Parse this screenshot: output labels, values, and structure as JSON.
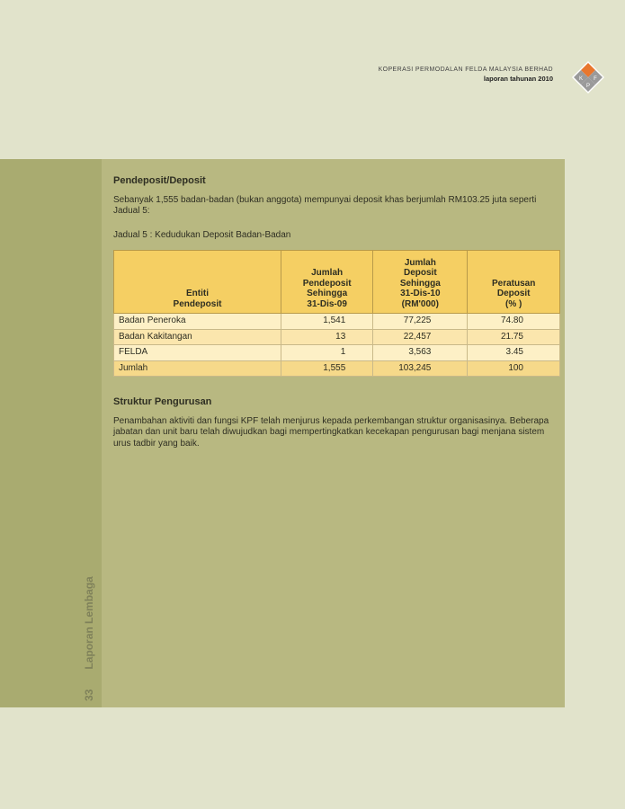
{
  "header": {
    "org": "KOPERASI PERMODALAN FELDA MALAYSIA BERHAD",
    "report": "laporan tahunan 2010",
    "logo_letters": [
      "K",
      "P",
      "F"
    ]
  },
  "sidebar": {
    "page_number": "33",
    "section": "Laporan Lembaga"
  },
  "section1": {
    "title": "Pendeposit/Deposit",
    "para": "Sebanyak 1,555 badan-badan (bukan anggota) mempunyai deposit khas berjumlah RM103.25 juta seperti Jadual 5:",
    "caption": "Jadual 5 : Kedudukan Deposit Badan-Badan"
  },
  "table": {
    "headers": [
      [
        "Entiti",
        "Pendeposit"
      ],
      [
        "Jumlah",
        "Pendeposit",
        "Sehingga",
        "31-Dis-09"
      ],
      [
        "Jumlah",
        "Deposit",
        "Sehingga",
        "31-Dis-10",
        "(RM'000)"
      ],
      [
        "Peratusan",
        "Deposit",
        "(% )"
      ]
    ],
    "rows": [
      [
        "Badan Peneroka",
        "1,541",
        "77,225",
        "74.80"
      ],
      [
        "Badan Kakitangan",
        "13",
        "22,457",
        "21.75"
      ],
      [
        "FELDA",
        "1",
        "3,563",
        "3.45"
      ],
      [
        "Jumlah",
        "1,555",
        "103,245",
        "100"
      ]
    ]
  },
  "section2": {
    "title": "Struktur Pengurusan",
    "para": "Penambahan aktiviti dan fungsi KPF telah menjurus kepada perkembangan struktur organisasinya. Beberapa jabatan dan unit baru telah diwujudkan bagi mempertingkatkan kecekapan pengurusan bagi menjana sistem urus tadbir yang baik."
  },
  "colors": {
    "page": "#e1e3cb",
    "panel": "#b8b881",
    "strip": "#a9ab70",
    "table_header": "#f5cf63",
    "logo_orange": "#e8772e"
  }
}
